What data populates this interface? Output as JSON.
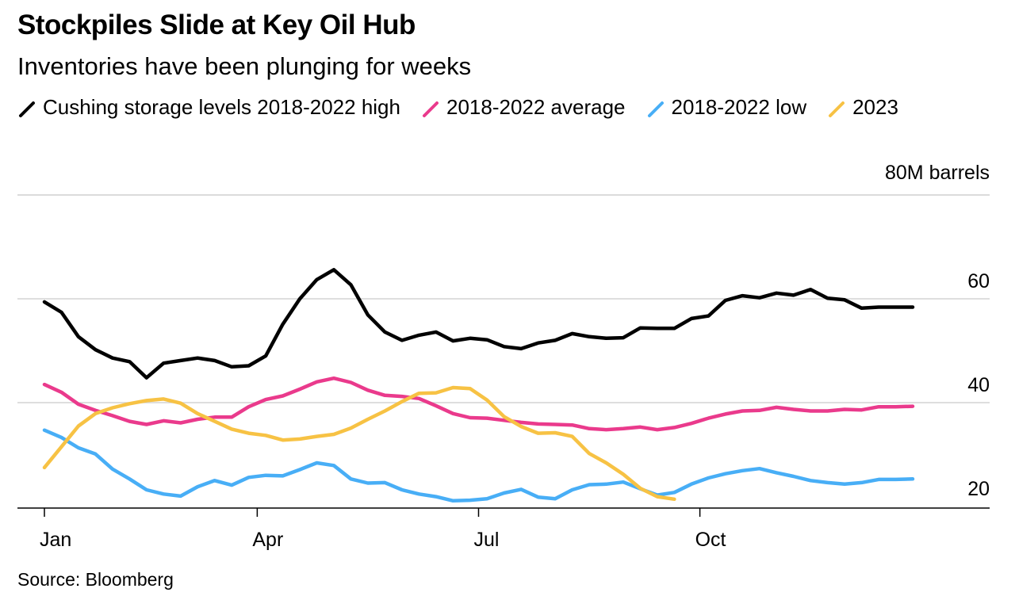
{
  "header": {
    "title": "Stockpiles Slide at Key Oil Hub",
    "subtitle": "Inventories have been plunging for weeks"
  },
  "footer": {
    "source": "Source: Bloomberg"
  },
  "chart_data": {
    "type": "line",
    "title": "Stockpiles Slide at Key Oil Hub",
    "subtitle": "Inventories have been plunging for weeks",
    "xlabel": "",
    "ylabel": "",
    "y_unit_label": "80M barrels",
    "ylim": [
      17,
      80
    ],
    "yticks": [
      20,
      40,
      60
    ],
    "ytick_labels": [
      "20",
      "40",
      "60"
    ],
    "xlim": [
      1,
      52
    ],
    "x_unit": "week of year",
    "xticks": [
      1,
      13.5,
      26.5,
      39.5
    ],
    "xtick_labels": [
      "Jan",
      "Apr",
      "Jul",
      "Oct"
    ],
    "grid": true,
    "legend_position": "top",
    "series": [
      {
        "name": "Cushing storage levels 2018-2022 high",
        "color": "#000000",
        "x": [
          1,
          2,
          3,
          4,
          5,
          6,
          7,
          8,
          9,
          10,
          11,
          12,
          13,
          14,
          15,
          16,
          17,
          18,
          19,
          20,
          21,
          22,
          23,
          24,
          25,
          26,
          27,
          28,
          29,
          30,
          31,
          32,
          33,
          34,
          35,
          36,
          37,
          38,
          39,
          40,
          41,
          42,
          43,
          44,
          45,
          46,
          47,
          48,
          49,
          50,
          51,
          52
        ],
        "values": [
          59.4,
          57.4,
          52.7,
          50.2,
          48.6,
          47.9,
          44.8,
          47.6,
          48.1,
          48.6,
          48.1,
          46.9,
          47.1,
          49.0,
          55.1,
          60.0,
          63.7,
          65.6,
          62.7,
          56.9,
          53.6,
          52.0,
          53.0,
          53.6,
          51.9,
          52.4,
          52.1,
          50.8,
          50.4,
          51.5,
          52.0,
          53.3,
          52.7,
          52.4,
          52.5,
          54.4,
          54.3,
          54.3,
          56.2,
          56.7,
          59.7,
          60.6,
          60.2,
          61.1,
          60.7,
          61.8,
          60.1,
          59.8,
          58.2,
          58.4,
          58.4,
          58.4
        ]
      },
      {
        "name": "2018-2022 average",
        "color": "#ea3a8c",
        "x": [
          1,
          2,
          3,
          4,
          5,
          6,
          7,
          8,
          9,
          10,
          11,
          12,
          13,
          14,
          15,
          16,
          17,
          18,
          19,
          20,
          21,
          22,
          23,
          24,
          25,
          26,
          27,
          28,
          29,
          30,
          31,
          32,
          33,
          34,
          35,
          36,
          37,
          38,
          39,
          40,
          41,
          42,
          43,
          44,
          45,
          46,
          47,
          48,
          49,
          50,
          51,
          52
        ],
        "values": [
          43.5,
          42.0,
          39.7,
          38.5,
          37.5,
          36.4,
          35.8,
          36.5,
          36.1,
          36.8,
          37.2,
          37.2,
          39.2,
          40.6,
          41.3,
          42.6,
          44.0,
          44.7,
          43.9,
          42.4,
          41.4,
          41.2,
          40.8,
          39.4,
          37.9,
          37.1,
          37.0,
          36.6,
          36.2,
          35.9,
          35.8,
          35.7,
          35.0,
          34.8,
          35.0,
          35.3,
          34.8,
          35.2,
          36.0,
          37.0,
          37.8,
          38.4,
          38.5,
          39.1,
          38.7,
          38.4,
          38.4,
          38.7,
          38.6,
          39.2,
          39.2,
          39.3
        ]
      },
      {
        "name": "2018-2022 low",
        "color": "#48aef6",
        "x": [
          1,
          2,
          3,
          4,
          5,
          6,
          7,
          8,
          9,
          10,
          11,
          12,
          13,
          14,
          15,
          16,
          17,
          18,
          19,
          20,
          21,
          22,
          23,
          24,
          25,
          26,
          27,
          28,
          29,
          30,
          31,
          32,
          33,
          34,
          35,
          36,
          37,
          38,
          39,
          40,
          41,
          42,
          43,
          44,
          45,
          46,
          47,
          48,
          49,
          50,
          51,
          52
        ],
        "values": [
          34.7,
          33.3,
          31.3,
          30.1,
          27.2,
          25.3,
          23.2,
          22.4,
          22.0,
          23.8,
          25.0,
          24.1,
          25.6,
          26.0,
          25.9,
          27.1,
          28.4,
          27.9,
          25.3,
          24.5,
          24.6,
          23.2,
          22.4,
          21.9,
          21.1,
          21.2,
          21.5,
          22.6,
          23.3,
          21.8,
          21.5,
          23.2,
          24.2,
          24.3,
          24.7,
          23.4,
          22.2,
          22.7,
          24.3,
          25.5,
          26.3,
          26.9,
          27.3,
          26.5,
          25.8,
          25.0,
          24.6,
          24.3,
          24.6,
          25.2,
          25.2,
          25.3
        ]
      },
      {
        "name": "2023",
        "color": "#f7c244",
        "x": [
          1,
          2,
          3,
          4,
          5,
          6,
          7,
          8,
          9,
          10,
          11,
          12,
          13,
          14,
          15,
          16,
          17,
          18,
          19,
          20,
          21,
          22,
          23,
          24,
          25,
          26,
          27,
          28,
          29,
          30,
          31,
          32,
          33,
          34,
          35,
          36,
          37,
          38
        ],
        "values": [
          27.5,
          31.5,
          35.5,
          37.9,
          39.0,
          39.8,
          40.4,
          40.7,
          39.9,
          37.9,
          36.4,
          34.9,
          34.1,
          33.7,
          32.8,
          33.0,
          33.5,
          33.9,
          35.1,
          36.8,
          38.4,
          40.2,
          41.8,
          41.9,
          42.9,
          42.7,
          40.5,
          37.3,
          35.4,
          34.1,
          34.2,
          33.5,
          30.2,
          28.4,
          26.2,
          23.5,
          21.9,
          21.4
        ]
      }
    ]
  }
}
